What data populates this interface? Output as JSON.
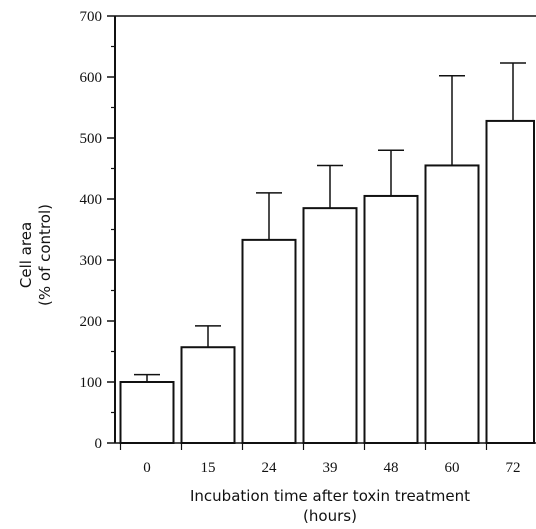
{
  "chart_data": {
    "type": "bar",
    "categories": [
      "0",
      "15",
      "24",
      "39",
      "48",
      "60",
      "72"
    ],
    "values": [
      100,
      157,
      333,
      385,
      405,
      455,
      528
    ],
    "error_upper": [
      112,
      192,
      410,
      455,
      480,
      602,
      623
    ],
    "ylim": [
      0,
      700
    ],
    "yticks": [
      0,
      100,
      200,
      300,
      400,
      500,
      600,
      700
    ],
    "xlabel_line1": "Incubation time after toxin treatment",
    "xlabel_line2": "(hours)",
    "ylabel_line1": "Cell area",
    "ylabel_line2": "(% of control)",
    "grid": false,
    "colors": {
      "bar_fill": "#ffffff",
      "stroke": "#111111"
    }
  }
}
